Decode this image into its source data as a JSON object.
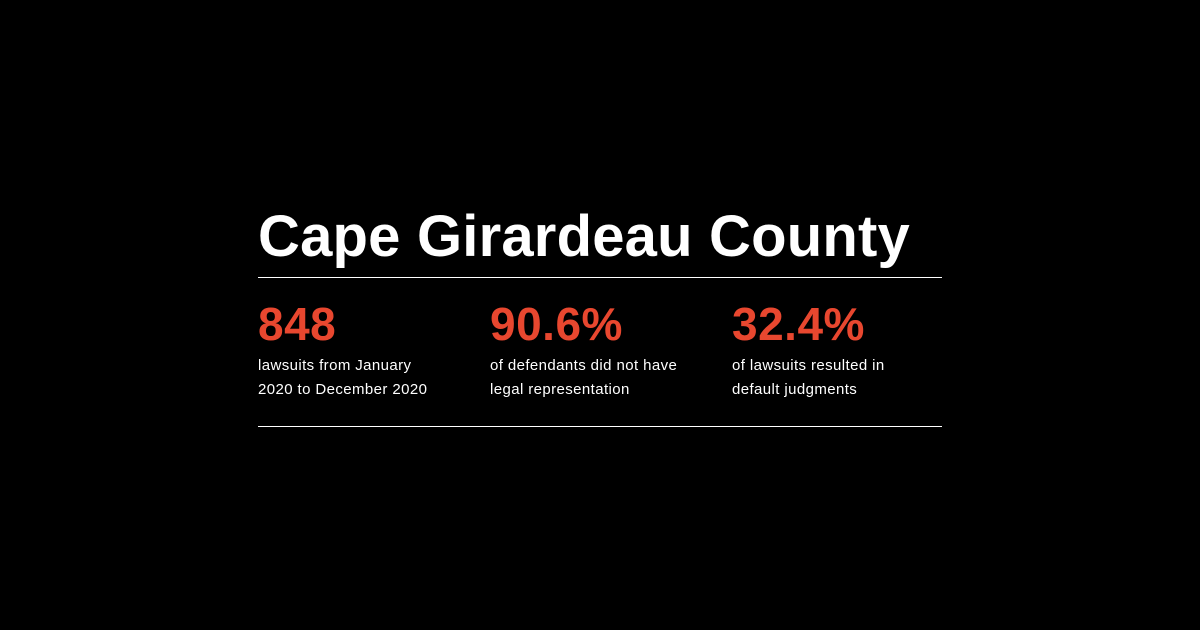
{
  "title": "Cape Girardeau County",
  "colors": {
    "background": "#000000",
    "accent": "#e8472f",
    "text": "#ffffff"
  },
  "stats": [
    {
      "value": "848",
      "line1": "lawsuits from January",
      "line2": "2020 to December 2020"
    },
    {
      "value": "90.6%",
      "line1": "of defendants did not have",
      "line2": "legal representation"
    },
    {
      "value": "32.4%",
      "line1": "of lawsuits resulted in",
      "line2": "default judgments"
    }
  ]
}
